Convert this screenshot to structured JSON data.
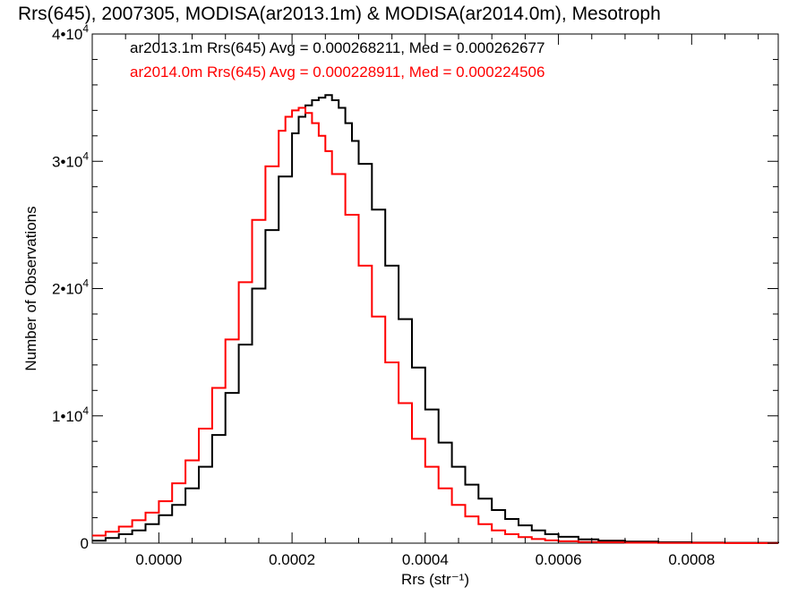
{
  "chart_data": {
    "type": "line",
    "title": "Rrs(645), 2007305, MODISA(ar2013.1m) & MODISA(ar2014.0m), Mesotroph",
    "xlabel": "Rrs (str⁻¹)",
    "ylabel": "Number of Observations",
    "xlim": [
      -0.0001,
      0.00093
    ],
    "ylim": [
      0,
      40000
    ],
    "x_ticks": [
      0.0,
      0.0002,
      0.0004,
      0.0006,
      0.0008
    ],
    "x_tick_labels": [
      "0.0000",
      "0.0002",
      "0.0004",
      "0.0006",
      "0.0008"
    ],
    "y_ticks": [
      0,
      10000,
      20000,
      30000,
      40000
    ],
    "y_tick_labels": [
      {
        "mantissa": "0",
        "exp": ""
      },
      {
        "mantissa": "1•10",
        "exp": "4"
      },
      {
        "mantissa": "2•10",
        "exp": "4"
      },
      {
        "mantissa": "3•10",
        "exp": "4"
      },
      {
        "mantissa": "4•10",
        "exp": "4"
      }
    ],
    "grid": false,
    "legend_position": "top-left",
    "step": true,
    "series": [
      {
        "name": "ar2013.1m Rrs(645) Avg = 0.000268211, Med = 0.000262677",
        "color": "#000000",
        "x": [
          -0.0001,
          -8e-05,
          -6e-05,
          -4e-05,
          -2e-05,
          0.0,
          2e-05,
          4e-05,
          6e-05,
          8e-05,
          0.0001,
          0.00012,
          0.00014,
          0.00016,
          0.00018,
          0.0002,
          0.00021,
          0.00022,
          0.00023,
          0.00024,
          0.00025,
          0.00026,
          0.00027,
          0.00028,
          0.00029,
          0.0003,
          0.00032,
          0.00034,
          0.00036,
          0.00038,
          0.0004,
          0.00042,
          0.00044,
          0.00046,
          0.00048,
          0.0005,
          0.00052,
          0.00054,
          0.00056,
          0.00058,
          0.0006,
          0.00063,
          0.00066,
          0.0007,
          0.00075,
          0.0008,
          0.00085,
          0.00093
        ],
        "values": [
          200,
          400,
          700,
          1000,
          1500,
          2200,
          3000,
          4300,
          6000,
          8500,
          11800,
          15600,
          20000,
          24600,
          28800,
          32200,
          33500,
          34400,
          34800,
          35000,
          35200,
          34800,
          34200,
          33000,
          31600,
          29800,
          26200,
          21800,
          17600,
          13800,
          10500,
          7900,
          6000,
          4600,
          3500,
          2600,
          1900,
          1400,
          1000,
          700,
          500,
          300,
          200,
          120,
          70,
          40,
          25,
          10
        ]
      },
      {
        "name": "ar2014.0m Rrs(645) Avg = 0.000228911, Med = 0.000224506",
        "color": "#ff0000",
        "x": [
          -0.0001,
          -8e-05,
          -6e-05,
          -4e-05,
          -2e-05,
          0.0,
          2e-05,
          4e-05,
          6e-05,
          8e-05,
          0.0001,
          0.00012,
          0.00014,
          0.00016,
          0.00018,
          0.00019,
          0.0002,
          0.00021,
          0.00022,
          0.00023,
          0.00024,
          0.00025,
          0.00026,
          0.00028,
          0.0003,
          0.00032,
          0.00034,
          0.00036,
          0.00038,
          0.0004,
          0.00042,
          0.00044,
          0.00046,
          0.00048,
          0.0005,
          0.00052,
          0.00054,
          0.00056,
          0.00058,
          0.0006,
          0.00063,
          0.00066,
          0.0007,
          0.00075,
          0.0008,
          0.00085,
          0.00093
        ],
        "values": [
          600,
          900,
          1300,
          1800,
          2400,
          3300,
          4700,
          6500,
          9000,
          12200,
          16000,
          20500,
          25400,
          29600,
          32400,
          33500,
          34000,
          34200,
          33800,
          33000,
          32000,
          30800,
          29000,
          25800,
          21800,
          17800,
          14200,
          11000,
          8200,
          6000,
          4300,
          3000,
          2100,
          1500,
          1000,
          700,
          480,
          320,
          220,
          150,
          90,
          60,
          35,
          20,
          12,
          8,
          5
        ]
      }
    ]
  }
}
